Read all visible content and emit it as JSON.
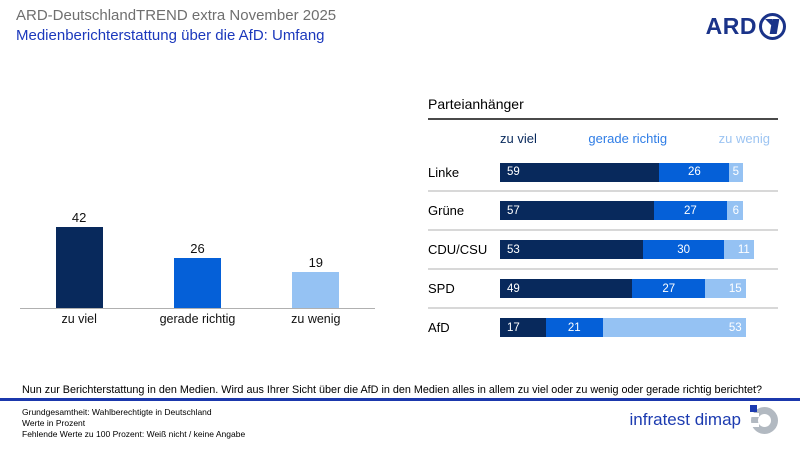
{
  "header": {
    "kicker": "ARD-DeutschlandTREND extra November 2025",
    "title": "Medienberichterstattung über die AfD: Umfang",
    "ard_logo_text": "ARD"
  },
  "colors": {
    "dark_blue": "#08295c",
    "medium_blue": "#0560d8",
    "light_blue": "#95c2f3",
    "title_blue": "#1b38bc",
    "divider_blue": "#1b38ac",
    "kicker_gray": "#6f6f6f",
    "separator_gray": "#d8d8d8"
  },
  "chart_data": [
    {
      "type": "bar",
      "title": "",
      "categories": [
        "zu viel",
        "gerade richtig",
        "zu wenig"
      ],
      "values": [
        42,
        26,
        19
      ],
      "bar_colors": [
        "#08295c",
        "#0560d8",
        "#95c2f3"
      ],
      "xlabel": "",
      "ylabel": "",
      "ylim": [
        0,
        50
      ],
      "grid": false,
      "value_labels": "above bars"
    },
    {
      "type": "bar",
      "orientation": "horizontal_stacked",
      "title": "Parteianhänger",
      "categories": [
        "Linke",
        "Grüne",
        "CDU/CSU",
        "SPD",
        "AfD"
      ],
      "series": [
        {
          "name": "zu viel",
          "color": "#08295c",
          "values": [
            59,
            57,
            53,
            49,
            17
          ]
        },
        {
          "name": "gerade richtig",
          "color": "#0560d8",
          "values": [
            26,
            27,
            30,
            27,
            21
          ]
        },
        {
          "name": "zu wenig",
          "color": "#95c2f3",
          "values": [
            5,
            6,
            11,
            15,
            53
          ]
        }
      ],
      "xlim": [
        0,
        100
      ],
      "legend_position": "top",
      "legend_text_colors": [
        "#08295c",
        "#2f7de6",
        "#9cc4f2"
      ],
      "value_labels": "inside segments"
    }
  ],
  "question": "Nun zur Berichterstattung in den Medien. Wird aus Ihrer Sicht über die AfD in den Medien alles in allem zu viel oder zu wenig oder gerade richtig berichtet?",
  "footer": {
    "line1": "Grundgesamtheit: Wahlberechtigte in Deutschland",
    "line2": "Werte in Prozent",
    "line3": "Fehlende Werte zu 100 Prozent: Weiß nicht / keine Angabe",
    "brand": "infratest dimap"
  }
}
